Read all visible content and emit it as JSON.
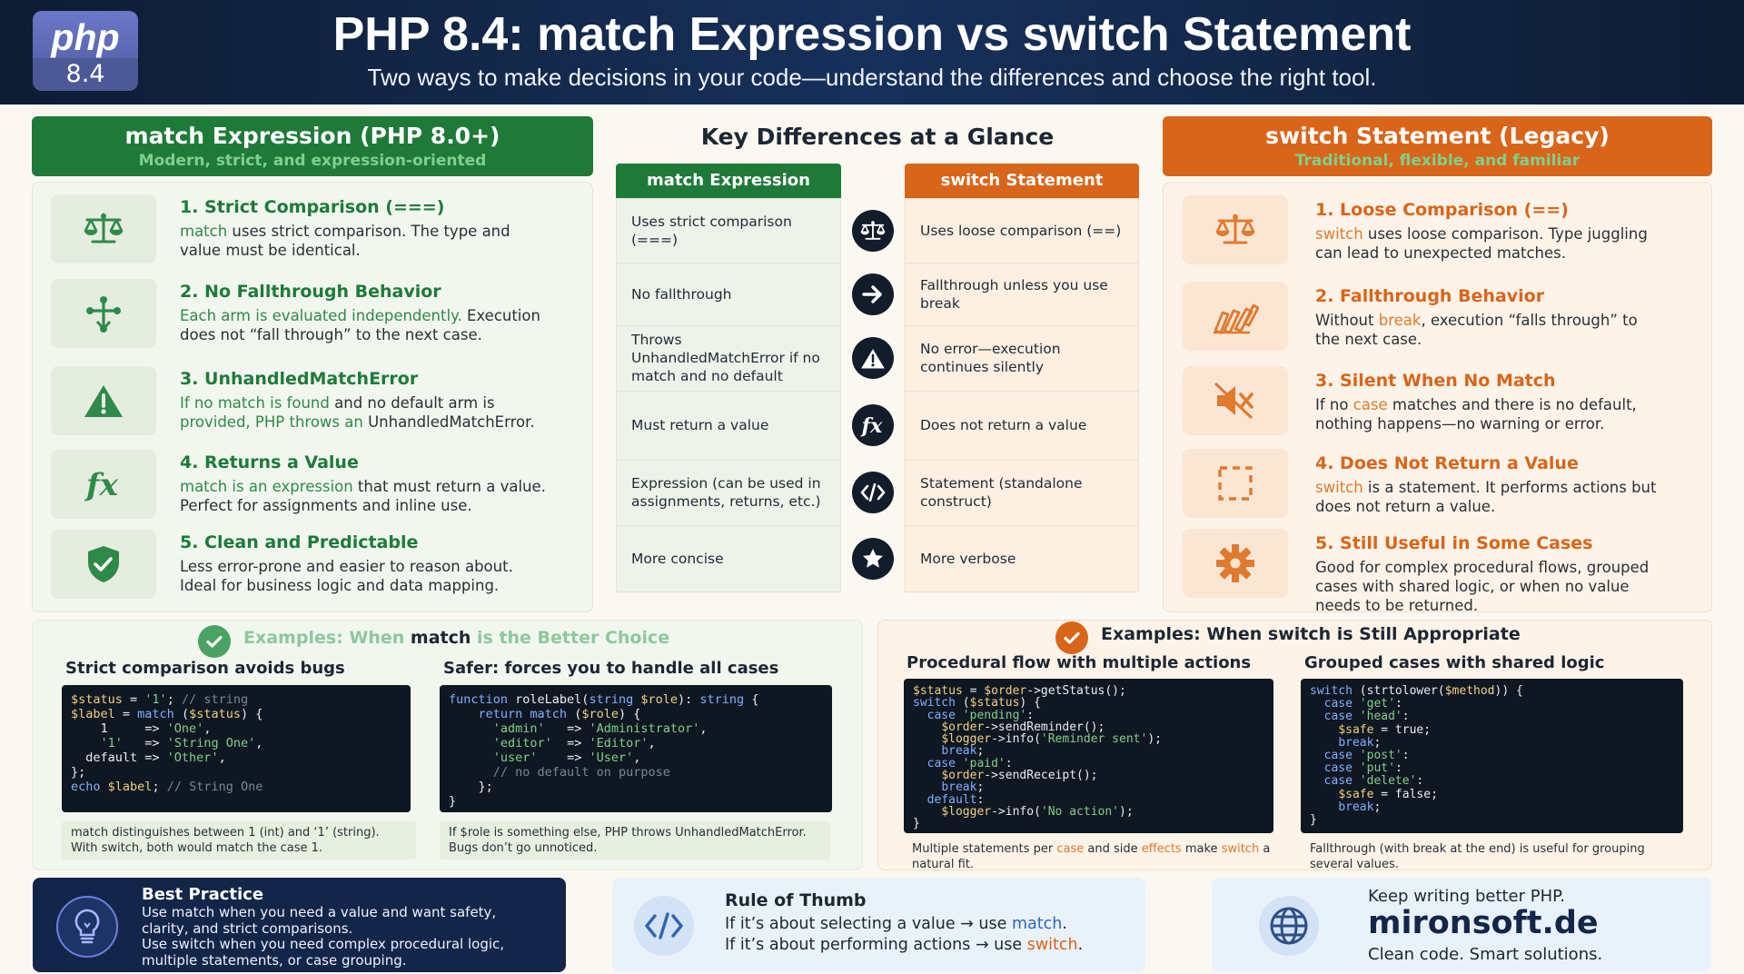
{
  "header": {
    "logo_word": "php",
    "logo_version": "8.4",
    "title": "PHP 8.4: match Expression vs switch Statement",
    "subtitle": "Two ways to make decisions in your code—understand the differences and choose the right tool."
  },
  "left": {
    "title": "match Expression (PHP 8.0+)",
    "subtitle": "Modern, strict, and expression-oriented",
    "features": [
      {
        "icon": "scales-icon",
        "title": "1. Strict Comparison (===)",
        "desc": [
          {
            "t": "match",
            "hl": true
          },
          {
            "t": " uses strict comparison. The type and value must be identical."
          }
        ]
      },
      {
        "icon": "branch-icon",
        "title": "2. No Fallthrough Behavior",
        "desc": [
          {
            "t": "Each arm is evaluated independently.",
            "hl": true
          },
          {
            "t": " Execution does not “fall through” to the next case."
          }
        ]
      },
      {
        "icon": "warning-icon",
        "title": "3. UnhandledMatchError",
        "desc": [
          {
            "t": "If no match is found",
            "hl": true
          },
          {
            "t": " and no default arm is "
          },
          {
            "t": "provided, PHP throws an",
            "hl": true
          },
          {
            "t": " UnhandledMatchError."
          }
        ]
      },
      {
        "icon": "fx-icon",
        "title": "4. Returns a Value",
        "desc": [
          {
            "t": "match is an expression",
            "hl": true
          },
          {
            "t": " that must return a "
          },
          {
            "t": "value. Perfect for assignments and inline use.",
            "hl": false
          }
        ]
      },
      {
        "icon": "shield-check-icon",
        "title": "5. Clean and Predictable",
        "desc": [
          {
            "t": "Less error-prone and easier to reason about. Ideal for business logic and data mapping."
          }
        ]
      }
    ]
  },
  "right": {
    "title": "switch Statement (Legacy)",
    "subtitle": "Traditional, flexible, and familiar",
    "features": [
      {
        "icon": "scales-icon",
        "title": "1. Loose Comparison (==)",
        "desc": [
          {
            "t": "switch",
            "hl": true
          },
          {
            "t": " uses loose comparison. Type juggling can lead to unexpected matches."
          }
        ]
      },
      {
        "icon": "dominoes-icon",
        "title": "2. Fallthrough Behavior",
        "desc": [
          {
            "t": "Without "
          },
          {
            "t": "break",
            "hl": true
          },
          {
            "t": ", execution “falls through” to the next case."
          }
        ]
      },
      {
        "icon": "mute-icon",
        "title": "3. Silent When No Match",
        "desc": [
          {
            "t": "If no "
          },
          {
            "t": "case",
            "hl": true
          },
          {
            "t": " matches and there is no default, nothing happens—no warning or error."
          }
        ]
      },
      {
        "icon": "dashed-square-icon",
        "title": "4. Does Not Return a Value",
        "desc": [
          {
            "t": "switch",
            "hl": true
          },
          {
            "t": " is a statement. It performs actions but does not return a value."
          }
        ]
      },
      {
        "icon": "gear-icon",
        "title": "5. Still Useful in Some Cases",
        "desc": [
          {
            "t": "Good for complex procedural flows, grouped cases with shared logic, or when no value needs to be returned."
          }
        ]
      }
    ]
  },
  "compare": {
    "title": "Key Differences at a Glance",
    "col_match": "match Expression",
    "col_switch": "switch Statement",
    "rows": [
      {
        "match": "Uses strict comparison (===)",
        "switch": "Uses loose comparison (==)",
        "icon": "scales-icon"
      },
      {
        "match": "No fallthrough",
        "switch": "Fallthrough unless you use break",
        "icon": "arrow-right-icon"
      },
      {
        "match": "Throws UnhandledMatchError if no match and no default",
        "switch": "No error—execution continues silently",
        "icon": "warning-icon"
      },
      {
        "match": "Must return a value",
        "switch": "Does not return a value",
        "icon": "fx-icon"
      },
      {
        "match": "Expression (can be used in assignments, returns, etc.)",
        "switch": "Statement (standalone construct)",
        "icon": "code-icon"
      },
      {
        "match": "More concise",
        "switch": "More verbose",
        "icon": "star-icon"
      }
    ]
  },
  "ex_match": {
    "title_pre": "Examples: When ",
    "title_kw": "match",
    "title_post": " is the Better Choice",
    "a": {
      "title": "Strict comparison avoids bugs",
      "code": [
        [
          [
            "v",
            "$status"
          ],
          [
            "t",
            " = "
          ],
          [
            "s",
            "'1'"
          ],
          [
            "t",
            "; "
          ],
          [
            "c",
            "// string"
          ]
        ],
        [
          [
            "v",
            "$label"
          ],
          [
            "t",
            " = "
          ],
          [
            "k",
            "match"
          ],
          [
            "t",
            " ("
          ],
          [
            "v",
            "$status"
          ],
          [
            "t",
            ") {"
          ]
        ],
        [
          [
            "t",
            "    1     => "
          ],
          [
            "s",
            "'One'"
          ],
          [
            "t",
            ","
          ]
        ],
        [
          [
            "t",
            "    "
          ],
          [
            "s",
            "'1'"
          ],
          [
            "t",
            "   => "
          ],
          [
            "s",
            "'String One'"
          ],
          [
            "t",
            ","
          ]
        ],
        [
          [
            "t",
            "  default => "
          ],
          [
            "s",
            "'Other'"
          ],
          [
            "t",
            ","
          ]
        ],
        [
          [
            "t",
            "};"
          ]
        ],
        [
          [
            "k",
            "echo"
          ],
          [
            "t",
            " "
          ],
          [
            "v",
            "$label"
          ],
          [
            "t",
            "; "
          ],
          [
            "c",
            "// String One"
          ]
        ]
      ],
      "note": "match distinguishes between 1 (int) and ‘1’ (string). With switch, both would match the case 1."
    },
    "b": {
      "title": "Safer: forces you to handle all cases",
      "code": [
        [
          [
            "k",
            "function"
          ],
          [
            "t",
            " roleLabel("
          ],
          [
            "k",
            "string"
          ],
          [
            "t",
            " "
          ],
          [
            "v",
            "$role"
          ],
          [
            "t",
            "): "
          ],
          [
            "k",
            "string"
          ],
          [
            "t",
            " {"
          ]
        ],
        [
          [
            "t",
            "    "
          ],
          [
            "k",
            "return match"
          ],
          [
            "t",
            " ("
          ],
          [
            "v",
            "$role"
          ],
          [
            "t",
            ") {"
          ]
        ],
        [
          [
            "t",
            "      "
          ],
          [
            "s",
            "'admin'"
          ],
          [
            "t",
            "   => "
          ],
          [
            "s",
            "'Administrator'"
          ],
          [
            "t",
            ","
          ]
        ],
        [
          [
            "t",
            "      "
          ],
          [
            "s",
            "'editor'"
          ],
          [
            "t",
            "  => "
          ],
          [
            "s",
            "'Editor'"
          ],
          [
            "t",
            ","
          ]
        ],
        [
          [
            "t",
            "      "
          ],
          [
            "s",
            "'user'"
          ],
          [
            "t",
            "    => "
          ],
          [
            "s",
            "'User'"
          ],
          [
            "t",
            ","
          ]
        ],
        [
          [
            "t",
            "      "
          ],
          [
            "c",
            "// no default on purpose"
          ]
        ],
        [
          [
            "t",
            "    };"
          ]
        ],
        [
          [
            "t",
            "}"
          ]
        ]
      ],
      "note": "If $role is something else, PHP throws UnhandledMatchError. Bugs don’t go unnoticed."
    }
  },
  "ex_switch": {
    "title": "Examples: When switch is Still Appropriate",
    "a": {
      "title": "Procedural flow with multiple actions",
      "code": [
        [
          [
            "v",
            "$status"
          ],
          [
            "t",
            " = "
          ],
          [
            "v",
            "$order"
          ],
          [
            "t",
            "->getStatus();"
          ]
        ],
        [
          [
            "k",
            "switch"
          ],
          [
            "t",
            " ("
          ],
          [
            "v",
            "$status"
          ],
          [
            "t",
            ") {"
          ]
        ],
        [
          [
            "t",
            "  "
          ],
          [
            "k",
            "case"
          ],
          [
            "t",
            " "
          ],
          [
            "s",
            "'pending'"
          ],
          [
            "t",
            ":"
          ]
        ],
        [
          [
            "t",
            "    "
          ],
          [
            "v",
            "$order"
          ],
          [
            "t",
            "->sendReminder();"
          ]
        ],
        [
          [
            "t",
            "    "
          ],
          [
            "v",
            "$logger"
          ],
          [
            "t",
            "->info("
          ],
          [
            "s",
            "'Reminder sent'"
          ],
          [
            "t",
            ");"
          ]
        ],
        [
          [
            "t",
            "    "
          ],
          [
            "k",
            "break"
          ],
          [
            "t",
            ";"
          ]
        ],
        [
          [
            "t",
            "  "
          ],
          [
            "k",
            "case"
          ],
          [
            "t",
            " "
          ],
          [
            "s",
            "'paid'"
          ],
          [
            "t",
            ":"
          ]
        ],
        [
          [
            "t",
            "    "
          ],
          [
            "v",
            "$order"
          ],
          [
            "t",
            "->sendReceipt();"
          ]
        ],
        [
          [
            "t",
            "    "
          ],
          [
            "k",
            "break"
          ],
          [
            "t",
            ";"
          ]
        ],
        [
          [
            "t",
            "  "
          ],
          [
            "k",
            "default"
          ],
          [
            "t",
            ":"
          ]
        ],
        [
          [
            "t",
            "    "
          ],
          [
            "v",
            "$logger"
          ],
          [
            "t",
            "->info("
          ],
          [
            "s",
            "'No action'"
          ],
          [
            "t",
            ");"
          ]
        ],
        [
          [
            "t",
            "}"
          ]
        ]
      ],
      "note": [
        {
          "t": "Multiple statements per "
        },
        {
          "t": "case",
          "hl": true
        },
        {
          "t": " and side "
        },
        {
          "t": "effects",
          "hl": true
        },
        {
          "t": " make "
        },
        {
          "t": "switch",
          "hl": true
        },
        {
          "t": " a natural fit."
        }
      ]
    },
    "b": {
      "title": "Grouped cases with shared logic",
      "code": [
        [
          [
            "k",
            "switch"
          ],
          [
            "t",
            " (strtolower("
          ],
          [
            "v",
            "$method"
          ],
          [
            "t",
            ")) {"
          ]
        ],
        [
          [
            "t",
            "  "
          ],
          [
            "k",
            "case"
          ],
          [
            "t",
            " "
          ],
          [
            "s",
            "'get'"
          ],
          [
            "t",
            ":"
          ]
        ],
        [
          [
            "t",
            "  "
          ],
          [
            "k",
            "case"
          ],
          [
            "t",
            " "
          ],
          [
            "s",
            "'head'"
          ],
          [
            "t",
            ":"
          ]
        ],
        [
          [
            "t",
            "    "
          ],
          [
            "v",
            "$safe"
          ],
          [
            "t",
            " = true;"
          ]
        ],
        [
          [
            "t",
            "    "
          ],
          [
            "k",
            "break"
          ],
          [
            "t",
            ";"
          ]
        ],
        [
          [
            "t",
            "  "
          ],
          [
            "k",
            "case"
          ],
          [
            "t",
            " "
          ],
          [
            "s",
            "'post'"
          ],
          [
            "t",
            ":"
          ]
        ],
        [
          [
            "t",
            "  "
          ],
          [
            "k",
            "case"
          ],
          [
            "t",
            " "
          ],
          [
            "s",
            "'put'"
          ],
          [
            "t",
            ":"
          ]
        ],
        [
          [
            "t",
            "  "
          ],
          [
            "k",
            "case"
          ],
          [
            "t",
            " "
          ],
          [
            "s",
            "'delete'"
          ],
          [
            "t",
            ":"
          ]
        ],
        [
          [
            "t",
            "    "
          ],
          [
            "v",
            "$safe"
          ],
          [
            "t",
            " = false;"
          ]
        ],
        [
          [
            "t",
            "    "
          ],
          [
            "k",
            "break"
          ],
          [
            "t",
            ";"
          ]
        ],
        [
          [
            "t",
            "}"
          ]
        ]
      ],
      "note": [
        {
          "t": "Fallthrough (with break at the end) is useful for grouping several values."
        }
      ]
    }
  },
  "best": {
    "title": "Best Practice",
    "lines": [
      "Use match when you need a value and want safety, clarity, and strict comparisons.",
      "Use switch when you need complex procedural logic, multiple statements, or case grouping."
    ]
  },
  "rule": {
    "title": "Rule of Thumb",
    "l1_pre": "If it’s about selecting a value → use ",
    "l1_kw": "match",
    "l1_post": ".",
    "l2_pre": "If it’s about performing actions → use ",
    "l2_kw": "switch",
    "l2_post": "."
  },
  "brand": {
    "line1": "Keep writing better PHP.",
    "site": "mironsoft.de",
    "line3": "Clean code. Smart solutions."
  }
}
